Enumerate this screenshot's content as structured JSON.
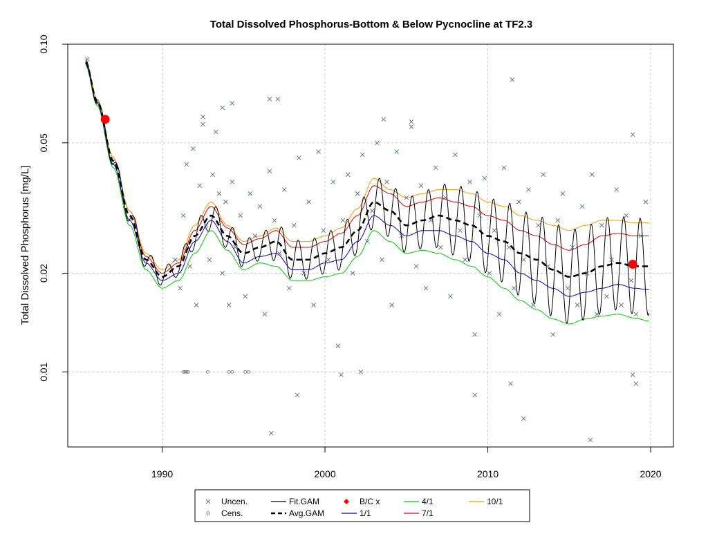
{
  "chart_data": {
    "type": "scatter",
    "title": "Total Dissolved Phosphorus-Bottom & Below Pycnocline at TF2.3",
    "ylabel": "Total Dissolved Phosphorus [mg/L]",
    "xlabel": "",
    "y_scale": "log",
    "xlim": [
      1984.2,
      2021.4
    ],
    "ylim": [
      0.0059,
      0.1
    ],
    "x_ticks": [
      1990,
      2000,
      2010,
      2020
    ],
    "x_tick_labels": [
      "1990",
      "2000",
      "2010",
      "2020"
    ],
    "y_ticks": [
      0.01,
      0.02,
      0.05,
      0.1
    ],
    "y_tick_labels": [
      "0.01",
      "0.02",
      "0.05",
      "0.10"
    ],
    "grid": true,
    "legend_position": "bottom",
    "legend": [
      {
        "label": "Uncen.",
        "symbol": "x",
        "color": "#5a6a8a"
      },
      {
        "label": "Cens.",
        "symbol": "circle",
        "color": "#777777"
      },
      {
        "label": "Fit.GAM",
        "symbol": "line",
        "color": "#000000"
      },
      {
        "label": "Avg.GAM",
        "symbol": "dashed",
        "color": "#000000"
      },
      {
        "label": "B/C x",
        "symbol": "diamond",
        "color": "#ff0000"
      },
      {
        "label": "1/1",
        "symbol": "line",
        "color": "#0000cc"
      },
      {
        "label": "4/1",
        "symbol": "line",
        "color": "#00cc00"
      },
      {
        "label": "7/1",
        "symbol": "line",
        "color": "#dd0000"
      },
      {
        "label": "10/1",
        "symbol": "line",
        "color": "#ee9900"
      }
    ],
    "series": [
      {
        "name": "Avg.GAM",
        "style": "dashed",
        "color": "#000000",
        "x": [
          1985.3,
          1986,
          1987,
          1988,
          1989,
          1990,
          1991,
          1992,
          1993,
          1994,
          1995,
          1996,
          1997,
          1998,
          1999,
          2000,
          2001,
          2002,
          2003,
          2004,
          2005,
          2006,
          2007,
          2008,
          2009,
          2010,
          2011,
          2012,
          2013,
          2014,
          2015,
          2016,
          2017,
          2018,
          2019,
          2019.9
        ],
        "y": [
          0.088,
          0.067,
          0.044,
          0.03,
          0.022,
          0.0195,
          0.021,
          0.026,
          0.03,
          0.026,
          0.023,
          0.024,
          0.025,
          0.022,
          0.022,
          0.023,
          0.024,
          0.027,
          0.033,
          0.031,
          0.028,
          0.029,
          0.03,
          0.029,
          0.028,
          0.026,
          0.025,
          0.023,
          0.022,
          0.0205,
          0.0195,
          0.02,
          0.021,
          0.0215,
          0.021,
          0.021
        ]
      },
      {
        "name": "1/1",
        "color": "#0000cc",
        "x": [
          1985.3,
          1986,
          1987,
          1988,
          1989,
          1990,
          1991,
          1992,
          1993,
          1994,
          1995,
          1996,
          1997,
          1998,
          1999,
          2000,
          2001,
          2002,
          2003,
          2004,
          2005,
          2006,
          2007,
          2008,
          2009,
          2010,
          2011,
          2012,
          2013,
          2014,
          2015,
          2016,
          2017,
          2018,
          2019,
          2019.9
        ],
        "y": [
          0.087,
          0.066,
          0.043,
          0.029,
          0.0215,
          0.019,
          0.02,
          0.025,
          0.029,
          0.025,
          0.0215,
          0.0225,
          0.023,
          0.0205,
          0.0205,
          0.0215,
          0.022,
          0.025,
          0.03,
          0.028,
          0.026,
          0.027,
          0.027,
          0.026,
          0.025,
          0.023,
          0.022,
          0.02,
          0.019,
          0.018,
          0.017,
          0.0175,
          0.018,
          0.0185,
          0.018,
          0.0178
        ]
      },
      {
        "name": "4/1",
        "color": "#00cc00",
        "x": [
          1985.3,
          1986,
          1987,
          1988,
          1989,
          1990,
          1991,
          1992,
          1993,
          1994,
          1995,
          1996,
          1997,
          1998,
          1999,
          2000,
          2001,
          2002,
          2003,
          2004,
          2005,
          2006,
          2007,
          2008,
          2009,
          2010,
          2011,
          2012,
          2013,
          2014,
          2015,
          2016,
          2017,
          2018,
          2019,
          2019.9
        ],
        "y": [
          0.086,
          0.065,
          0.042,
          0.028,
          0.0205,
          0.018,
          0.019,
          0.023,
          0.027,
          0.0235,
          0.0205,
          0.0215,
          0.021,
          0.019,
          0.019,
          0.0195,
          0.02,
          0.0225,
          0.027,
          0.025,
          0.023,
          0.0235,
          0.023,
          0.022,
          0.021,
          0.0195,
          0.018,
          0.0165,
          0.0155,
          0.0145,
          0.014,
          0.0145,
          0.0148,
          0.015,
          0.0146,
          0.0143
        ]
      },
      {
        "name": "7/1",
        "color": "#dd0000",
        "x": [
          1985.3,
          1986,
          1987,
          1988,
          1989,
          1990,
          1991,
          1992,
          1993,
          1994,
          1995,
          1996,
          1997,
          1998,
          1999,
          2000,
          2001,
          2002,
          2003,
          2004,
          2005,
          2006,
          2007,
          2008,
          2009,
          2010,
          2011,
          2012,
          2013,
          2014,
          2015,
          2016,
          2017,
          2018,
          2019,
          2019.9
        ],
        "y": [
          0.089,
          0.068,
          0.045,
          0.031,
          0.0225,
          0.02,
          0.0215,
          0.027,
          0.032,
          0.0275,
          0.0245,
          0.0255,
          0.027,
          0.024,
          0.024,
          0.025,
          0.0265,
          0.03,
          0.037,
          0.035,
          0.032,
          0.033,
          0.034,
          0.033,
          0.032,
          0.03,
          0.029,
          0.027,
          0.026,
          0.0245,
          0.0235,
          0.0245,
          0.026,
          0.0265,
          0.026,
          0.026
        ]
      },
      {
        "name": "10/1",
        "color": "#ee9900",
        "x": [
          1985.3,
          1986,
          1987,
          1988,
          1989,
          1990,
          1991,
          1992,
          1993,
          1994,
          1995,
          1996,
          1997,
          1998,
          1999,
          2000,
          2001,
          2002,
          2003,
          2004,
          2005,
          2006,
          2007,
          2008,
          2009,
          2010,
          2011,
          2012,
          2013,
          2014,
          2015,
          2016,
          2017,
          2018,
          2019,
          2019.9
        ],
        "y": [
          0.089,
          0.068,
          0.045,
          0.031,
          0.023,
          0.0205,
          0.022,
          0.028,
          0.033,
          0.028,
          0.025,
          0.026,
          0.0275,
          0.025,
          0.025,
          0.026,
          0.0275,
          0.0315,
          0.039,
          0.036,
          0.034,
          0.035,
          0.036,
          0.036,
          0.035,
          0.033,
          0.032,
          0.03,
          0.029,
          0.028,
          0.027,
          0.028,
          0.029,
          0.029,
          0.0285,
          0.0285
        ]
      },
      {
        "name": "Fit.GAM",
        "color": "#000000",
        "note_seasonal": true,
        "x_start": 1985.3,
        "x_end": 2019.9
      }
    ],
    "uncensored_points": {
      "x": [
        1985.4,
        1990.8,
        1991.1,
        1991.3,
        1991.5,
        1991.7,
        1991.9,
        1992.1,
        1992.3,
        1992.5,
        1992.7,
        1992.9,
        1993.1,
        1993.3,
        1993.5,
        1993.7,
        1993.9,
        1994.1,
        1994.3,
        1994.5,
        1994.8,
        1995.1,
        1995.4,
        1995.7,
        1996.0,
        1996.3,
        1996.6,
        1996.9,
        1997.2,
        1997.5,
        1997.8,
        1998.1,
        1998.4,
        1998.7,
        1999.0,
        1999.3,
        1999.6,
        1999.9,
        2000.2,
        2000.5,
        2000.8,
        2001.1,
        2001.4,
        2001.7,
        2002.0,
        2002.3,
        2002.6,
        2002.9,
        2003.2,
        2003.5,
        2003.8,
        2004.1,
        2004.4,
        2004.7,
        2005.0,
        2005.3,
        2005.6,
        2005.9,
        2006.2,
        2006.5,
        2006.8,
        2007.1,
        2007.4,
        2007.7,
        2008.0,
        2008.3,
        2008.6,
        2008.9,
        2009.2,
        2009.5,
        2009.8,
        2010.1,
        2010.4,
        2010.7,
        2011.0,
        2011.3,
        2011.6,
        2011.9,
        2012.2,
        2012.5,
        2012.8,
        2013.1,
        2013.4,
        2013.7,
        2014.0,
        2014.3,
        2014.6,
        2014.9,
        2015.2,
        2015.5,
        2015.8,
        2016.1,
        2016.4,
        2016.7,
        2017.0,
        2017.3,
        2017.6,
        2017.9,
        2018.2,
        2018.5,
        2018.8,
        2019.1,
        2019.4,
        2019.7,
        1996.7,
        1997.1,
        1998.3,
        2001.0,
        2002.2,
        2009.2,
        2011.4,
        2012.2,
        2016.3,
        2018.9,
        2019.1,
        1992.5,
        1993.7,
        1994.3,
        1996.6,
        2003.6,
        2005.3,
        2011.5,
        2018.9
      ],
      "y": [
        0.09,
        0.022,
        0.018,
        0.03,
        0.043,
        0.021,
        0.048,
        0.016,
        0.037,
        0.057,
        0.028,
        0.022,
        0.04,
        0.054,
        0.035,
        0.02,
        0.033,
        0.016,
        0.038,
        0.024,
        0.03,
        0.017,
        0.035,
        0.026,
        0.032,
        0.015,
        0.041,
        0.029,
        0.023,
        0.036,
        0.018,
        0.028,
        0.045,
        0.02,
        0.033,
        0.016,
        0.047,
        0.027,
        0.022,
        0.038,
        0.012,
        0.029,
        0.04,
        0.02,
        0.035,
        0.046,
        0.025,
        0.031,
        0.05,
        0.022,
        0.038,
        0.016,
        0.047,
        0.026,
        0.034,
        0.056,
        0.021,
        0.037,
        0.018,
        0.029,
        0.042,
        0.024,
        0.034,
        0.017,
        0.046,
        0.027,
        0.022,
        0.038,
        0.013,
        0.03,
        0.039,
        0.02,
        0.027,
        0.015,
        0.042,
        0.024,
        0.018,
        0.033,
        0.022,
        0.036,
        0.016,
        0.028,
        0.04,
        0.021,
        0.013,
        0.029,
        0.035,
        0.018,
        0.024,
        0.016,
        0.032,
        0.02,
        0.04,
        0.015,
        0.028,
        0.017,
        0.022,
        0.036,
        0.016,
        0.03,
        0.019,
        0.015,
        0.026,
        0.033,
        0.0065,
        0.068,
        0.0085,
        0.0098,
        0.01,
        0.0085,
        0.0092,
        0.0072,
        0.0062,
        0.0098,
        0.0092,
        0.06,
        0.064,
        0.066,
        0.068,
        0.059,
        0.058,
        0.078,
        0.053
      ]
    },
    "censored_points": {
      "x": [
        1991.3,
        1991.4,
        1991.5,
        1991.6,
        1992.8,
        1994.1,
        1994.3,
        1995.1,
        1995.3
      ],
      "y": [
        0.01,
        0.01,
        0.01,
        0.01,
        0.01,
        0.01,
        0.01,
        0.01,
        0.01
      ]
    },
    "bc_points": {
      "x": [
        1986.5,
        2018.9
      ],
      "y": [
        0.059,
        0.0213
      ]
    }
  }
}
